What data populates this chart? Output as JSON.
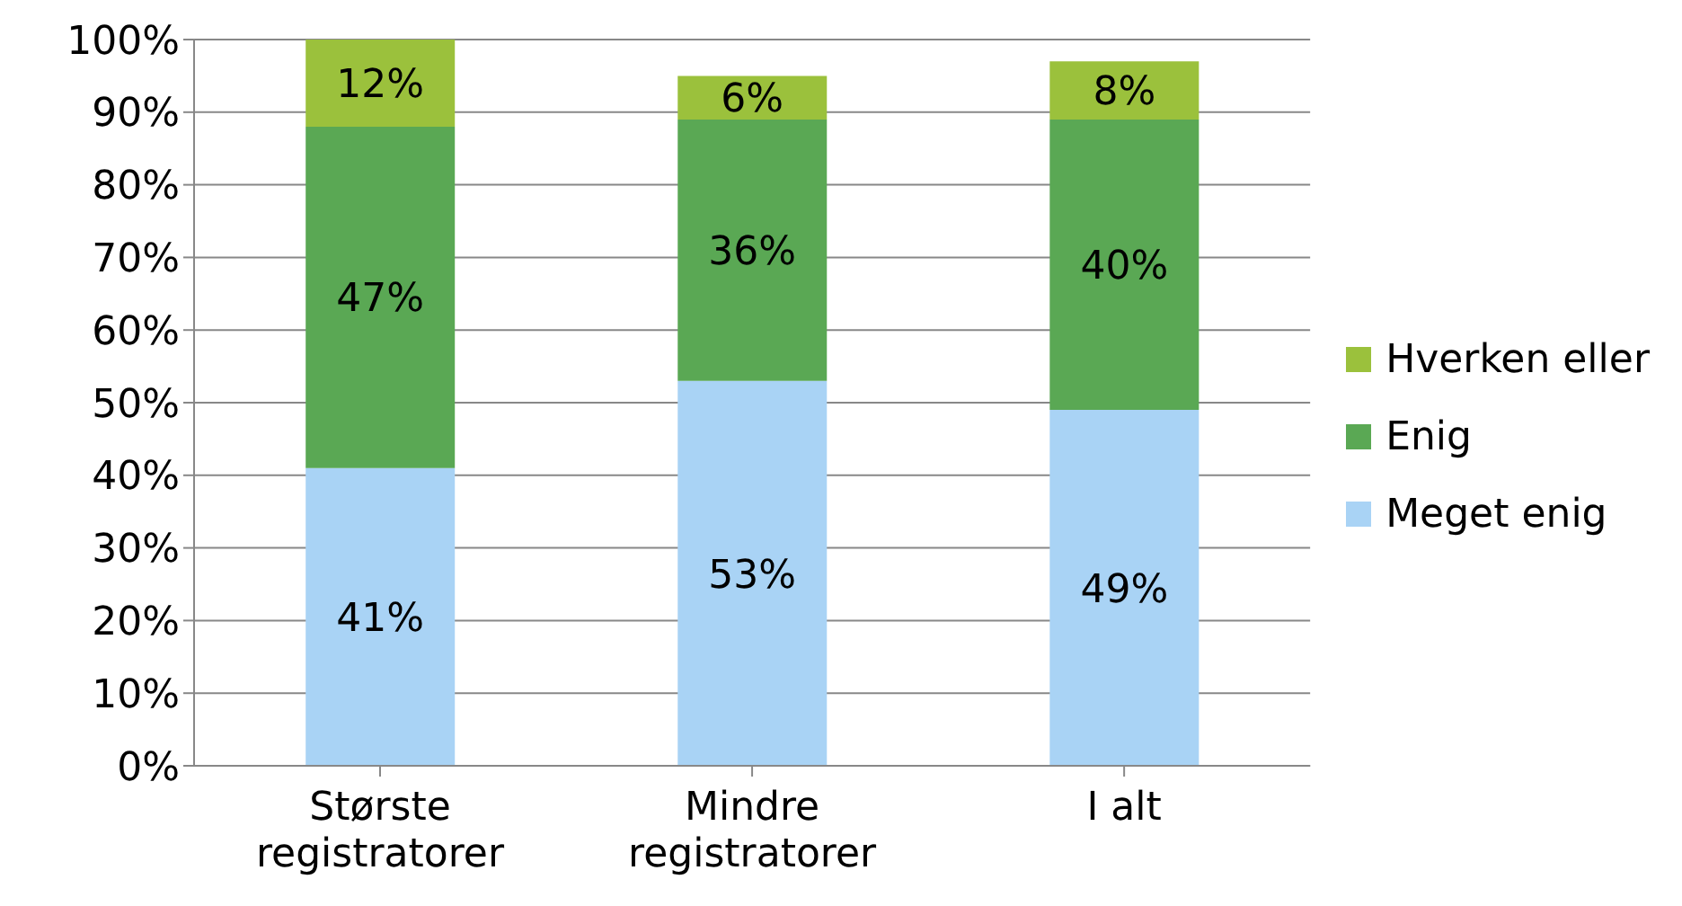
{
  "chart_data": {
    "type": "bar",
    "stacked": true,
    "categories": [
      "Største registratorer",
      "Mindre registratorer",
      "I alt"
    ],
    "series": [
      {
        "name": "Meget enig",
        "color": "#a9d3f5",
        "values": [
          41,
          53,
          49
        ],
        "value_labels": [
          "41%",
          "53%",
          "49%"
        ]
      },
      {
        "name": "Enig",
        "color": "#5aa854",
        "values": [
          47,
          36,
          40
        ],
        "value_labels": [
          "47%",
          "36%",
          "40%"
        ]
      },
      {
        "name": "Hverken eller",
        "color": "#9bc13c",
        "values": [
          12,
          6,
          8
        ],
        "value_labels": [
          "12%",
          "6%",
          "8%"
        ]
      }
    ],
    "ylim": [
      0,
      100
    ],
    "yticks": [
      {
        "value": 0,
        "label": "0%"
      },
      {
        "value": 10,
        "label": "10%"
      },
      {
        "value": 20,
        "label": "20%"
      },
      {
        "value": 30,
        "label": "30%"
      },
      {
        "value": 40,
        "label": "40%"
      },
      {
        "value": 50,
        "label": "50%"
      },
      {
        "value": 60,
        "label": "60%"
      },
      {
        "value": 70,
        "label": "70%"
      },
      {
        "value": 80,
        "label": "80%"
      },
      {
        "value": 90,
        "label": "90%"
      },
      {
        "value": 100,
        "label": "100%"
      }
    ],
    "grid": "y",
    "legend": "right"
  }
}
